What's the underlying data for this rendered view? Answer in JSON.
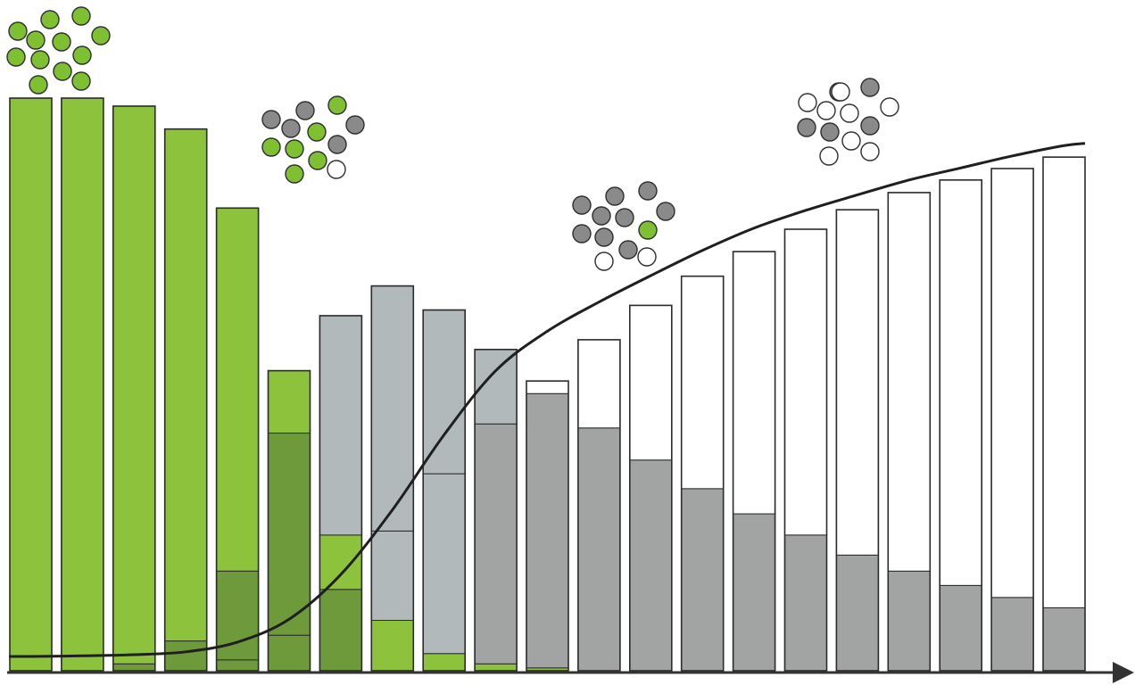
{
  "colors": {
    "green": "#8dc23c",
    "dark_green": "#6e9a3c",
    "gray": "#a2a4a4",
    "light_gray": "#b2b9ba",
    "white": "#ffffff",
    "outline": "#2b2b2b",
    "axis": "#333333",
    "dot_green": "#7fc033",
    "dot_gray": "#8a8a8a"
  },
  "chart_data": {
    "type": "bar",
    "stacked": true,
    "x_axis": {
      "arrow": true,
      "tick_labels": false
    },
    "y_axis": {
      "visible": false,
      "ylim": [
        0,
        100
      ]
    },
    "grid": false,
    "legend": "none",
    "bars": [
      {
        "total": 100,
        "segments": [
          {
            "color": "green",
            "value": 100
          }
        ]
      },
      {
        "total": 100,
        "segments": [
          {
            "color": "green",
            "value": 100
          }
        ]
      },
      {
        "total": 98.6,
        "segments": [
          {
            "color": "dark_green",
            "value": 1.2
          },
          {
            "color": "green",
            "value": 97.4
          }
        ]
      },
      {
        "total": 94.6,
        "segments": [
          {
            "color": "dark_green",
            "value": 5.2
          },
          {
            "color": "green",
            "value": 89.4
          }
        ]
      },
      {
        "total": 80.8,
        "segments": [
          {
            "color": "dark_green",
            "value": 1.9
          },
          {
            "color": "dark_green",
            "value": 15.5
          },
          {
            "color": "green",
            "value": 63.4
          }
        ]
      },
      {
        "total": 52.4,
        "segments": [
          {
            "color": "dark_green",
            "value": 6.2
          },
          {
            "color": "dark_green",
            "value": 35.3
          },
          {
            "color": "green",
            "value": 10.9
          }
        ]
      },
      {
        "total": 62.0,
        "segments": [
          {
            "color": "dark_green",
            "value": 14.2
          },
          {
            "color": "green",
            "value": 9.5
          },
          {
            "color": "light_gray",
            "value": 38.3
          }
        ]
      },
      {
        "total": 67.2,
        "segments": [
          {
            "color": "green",
            "value": 8.8
          },
          {
            "color": "light_gray",
            "value": 15.6
          },
          {
            "color": "light_gray",
            "value": 42.8
          }
        ]
      },
      {
        "total": 63.0,
        "segments": [
          {
            "color": "green",
            "value": 3.0
          },
          {
            "color": "light_gray",
            "value": 31.4
          },
          {
            "color": "light_gray",
            "value": 28.6
          }
        ]
      },
      {
        "total": 56.1,
        "segments": [
          {
            "color": "green",
            "value": 1.2
          },
          {
            "color": "gray",
            "value": 41.9
          },
          {
            "color": "light_gray",
            "value": 13.0
          }
        ]
      },
      {
        "total": 50.6,
        "segments": [
          {
            "color": "green",
            "value": 0.5
          },
          {
            "color": "gray",
            "value": 47.9
          },
          {
            "color": "white",
            "value": 2.2
          }
        ]
      },
      {
        "total": 57.8,
        "segments": [
          {
            "color": "gray",
            "value": 42.4
          },
          {
            "color": "white",
            "value": 15.4
          }
        ]
      },
      {
        "total": 63.8,
        "segments": [
          {
            "color": "gray",
            "value": 36.8
          },
          {
            "color": "white",
            "value": 27.0
          }
        ]
      },
      {
        "total": 68.9,
        "segments": [
          {
            "color": "gray",
            "value": 31.8
          },
          {
            "color": "white",
            "value": 37.1
          }
        ]
      },
      {
        "total": 73.2,
        "segments": [
          {
            "color": "gray",
            "value": 27.4
          },
          {
            "color": "white",
            "value": 45.8
          }
        ]
      },
      {
        "total": 77.1,
        "segments": [
          {
            "color": "gray",
            "value": 23.7
          },
          {
            "color": "white",
            "value": 53.4
          }
        ]
      },
      {
        "total": 80.5,
        "segments": [
          {
            "color": "gray",
            "value": 20.2
          },
          {
            "color": "white",
            "value": 60.3
          }
        ]
      },
      {
        "total": 83.5,
        "segments": [
          {
            "color": "gray",
            "value": 17.4
          },
          {
            "color": "white",
            "value": 66.1
          }
        ]
      },
      {
        "total": 85.7,
        "segments": [
          {
            "color": "gray",
            "value": 14.9
          },
          {
            "color": "white",
            "value": 70.8
          }
        ]
      },
      {
        "total": 87.7,
        "segments": [
          {
            "color": "gray",
            "value": 12.8
          },
          {
            "color": "white",
            "value": 74.9
          }
        ]
      },
      {
        "total": 89.7,
        "segments": [
          {
            "color": "gray",
            "value": 11.0
          },
          {
            "color": "white",
            "value": 78.7
          }
        ]
      }
    ],
    "curve": {
      "type": "line",
      "shape": "sigmoid",
      "points": [
        [
          0,
          2.5
        ],
        [
          1,
          2.6
        ],
        [
          2,
          2.8
        ],
        [
          3,
          3.3
        ],
        [
          4,
          5.0
        ],
        [
          5,
          9.0
        ],
        [
          6,
          16.8
        ],
        [
          7,
          28.1
        ],
        [
          8,
          41.2
        ],
        [
          9,
          52.4
        ],
        [
          10,
          59.3
        ],
        [
          11,
          64.4
        ],
        [
          12,
          69.0
        ],
        [
          13,
          73.4
        ],
        [
          14,
          77.3
        ],
        [
          15,
          80.4
        ],
        [
          16,
          83.1
        ],
        [
          17,
          85.7
        ],
        [
          18,
          87.8
        ],
        [
          19,
          89.9
        ],
        [
          20,
          91.7
        ]
      ]
    },
    "dot_clusters": [
      {
        "near_bar": 0,
        "green": 12,
        "gray": 0,
        "white": 0
      },
      {
        "near_bar": 5,
        "green": 6,
        "gray": 5,
        "white": 1
      },
      {
        "near_bar": 11,
        "green": 1,
        "gray": 9,
        "white": 2
      },
      {
        "near_bar": 16,
        "green": 0,
        "gray": 5,
        "white": 8
      }
    ]
  }
}
